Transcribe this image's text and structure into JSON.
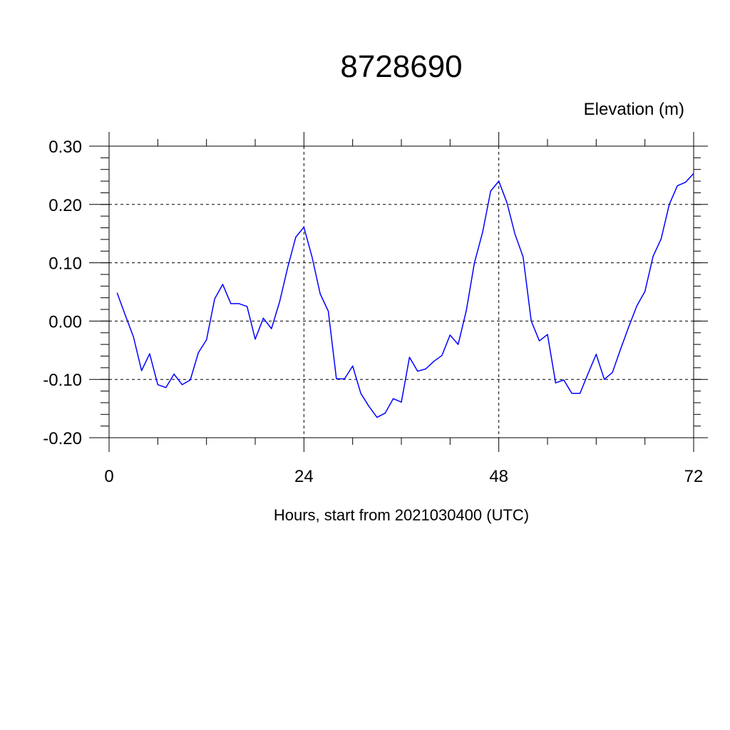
{
  "chart_data": {
    "type": "line",
    "title": "8728690",
    "ylabel": "Elevation (m)",
    "xlabel": "Hours, start from 2021030400 (UTC)",
    "xlim": [
      0,
      72
    ],
    "ylim": [
      -0.2,
      0.3
    ],
    "x_ticks": [
      0,
      24,
      48,
      72
    ],
    "x_tick_labels": [
      "0",
      "24",
      "48",
      "72"
    ],
    "y_ticks": [
      -0.2,
      -0.1,
      0.0,
      0.1,
      0.2,
      0.3
    ],
    "y_tick_labels": [
      "-0.20",
      "-0.10",
      "0.00",
      "0.10",
      "0.20",
      "0.30"
    ],
    "grid": true,
    "line_color": "#0000ff",
    "series": [
      {
        "x": [
          1,
          2,
          3,
          4,
          5,
          6,
          7,
          8,
          9,
          10,
          11,
          12,
          13,
          14,
          15,
          16,
          17,
          18,
          19,
          20,
          21,
          22,
          23,
          24,
          25,
          26,
          27,
          28,
          29,
          30,
          31,
          32,
          33,
          34,
          35,
          36,
          37,
          38,
          39,
          40,
          41,
          42,
          43,
          44,
          45,
          46,
          47,
          48,
          49,
          50,
          51,
          52,
          53,
          54,
          55,
          56,
          57,
          58,
          59,
          60,
          61,
          62,
          63,
          64,
          65,
          66,
          67,
          68,
          69,
          70,
          71,
          72
        ],
        "values": [
          0.048,
          0.01,
          -0.027,
          -0.085,
          -0.056,
          -0.109,
          -0.114,
          -0.091,
          -0.109,
          -0.101,
          -0.054,
          -0.032,
          0.038,
          0.063,
          0.03,
          0.03,
          0.025,
          -0.031,
          0.005,
          -0.013,
          0.033,
          0.092,
          0.144,
          0.161,
          0.11,
          0.047,
          0.017,
          -0.099,
          -0.099,
          -0.077,
          -0.124,
          -0.146,
          -0.165,
          -0.158,
          -0.133,
          -0.139,
          -0.062,
          -0.086,
          -0.082,
          -0.069,
          -0.059,
          -0.024,
          -0.04,
          0.018,
          0.1,
          0.152,
          0.223,
          0.24,
          0.203,
          0.149,
          0.11,
          0.0,
          -0.034,
          -0.023,
          -0.106,
          -0.101,
          -0.124,
          -0.124,
          -0.09,
          -0.057,
          -0.1,
          -0.088,
          -0.048,
          -0.01,
          0.026,
          0.051,
          0.111,
          0.141,
          0.2,
          0.232,
          0.238,
          0.253
        ]
      }
    ]
  }
}
